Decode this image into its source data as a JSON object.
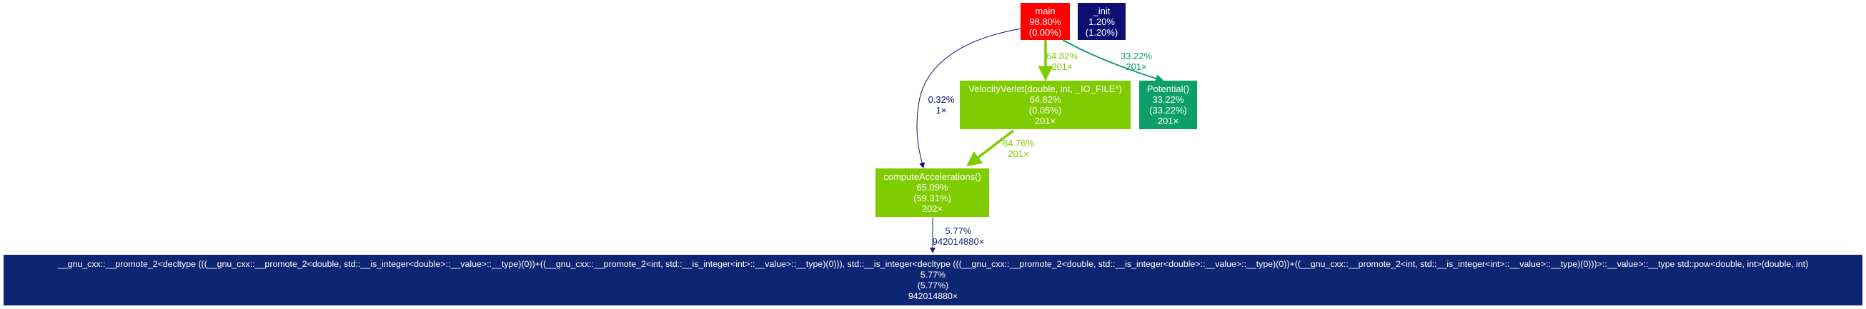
{
  "colors": {
    "red": "#ff0000",
    "navy": "#0d0d73",
    "green": "#7fcc00",
    "teal": "#0ca068",
    "darkblue": "#0d2673"
  },
  "nodes": {
    "main": {
      "name": "main",
      "total": "98.80%",
      "self": "(0.00%)"
    },
    "init": {
      "name": "_init",
      "total": "1.20%",
      "self": "(1.20%)"
    },
    "velocity": {
      "name": "VelocityVerlet(double, int, _IO_FILE*)",
      "total": "64.82%",
      "self": "(0.05%)",
      "calls": "201×"
    },
    "potential": {
      "name": "Potential()",
      "total": "33.22%",
      "self": "(33.22%)",
      "calls": "201×"
    },
    "compute": {
      "name": "computeAccelerations()",
      "total": "65.09%",
      "self": "(59.31%)",
      "calls": "202×"
    },
    "pow": {
      "name": "__gnu_cxx::__promote_2<decltype (((__gnu_cxx::__promote_2<double, std::__is_integer<double>::__value>::__type)(0))+((__gnu_cxx::__promote_2<int, std::__is_integer<int>::__value>::__type)(0))), std::__is_integer<decltype (((__gnu_cxx::__promote_2<double, std::__is_integer<double>::__value>::__type)(0))+((__gnu_cxx::__promote_2<int, std::__is_integer<int>::__value>::__type)(0)))>::__value>::__type std::pow<double, int>(double, int)",
      "total": "5.77%",
      "self": "(5.77%)",
      "calls": "942014880×"
    }
  },
  "edges": {
    "main_velocity": {
      "pct": "64.82%",
      "calls": "201×"
    },
    "main_potential": {
      "pct": "33.22%",
      "calls": "201×"
    },
    "main_compute": {
      "pct": "0.32%",
      "calls": "1×"
    },
    "velocity_compute": {
      "pct": "64.76%",
      "calls": "201×"
    },
    "compute_pow": {
      "pct": "5.77%",
      "calls": "942014880×"
    }
  }
}
